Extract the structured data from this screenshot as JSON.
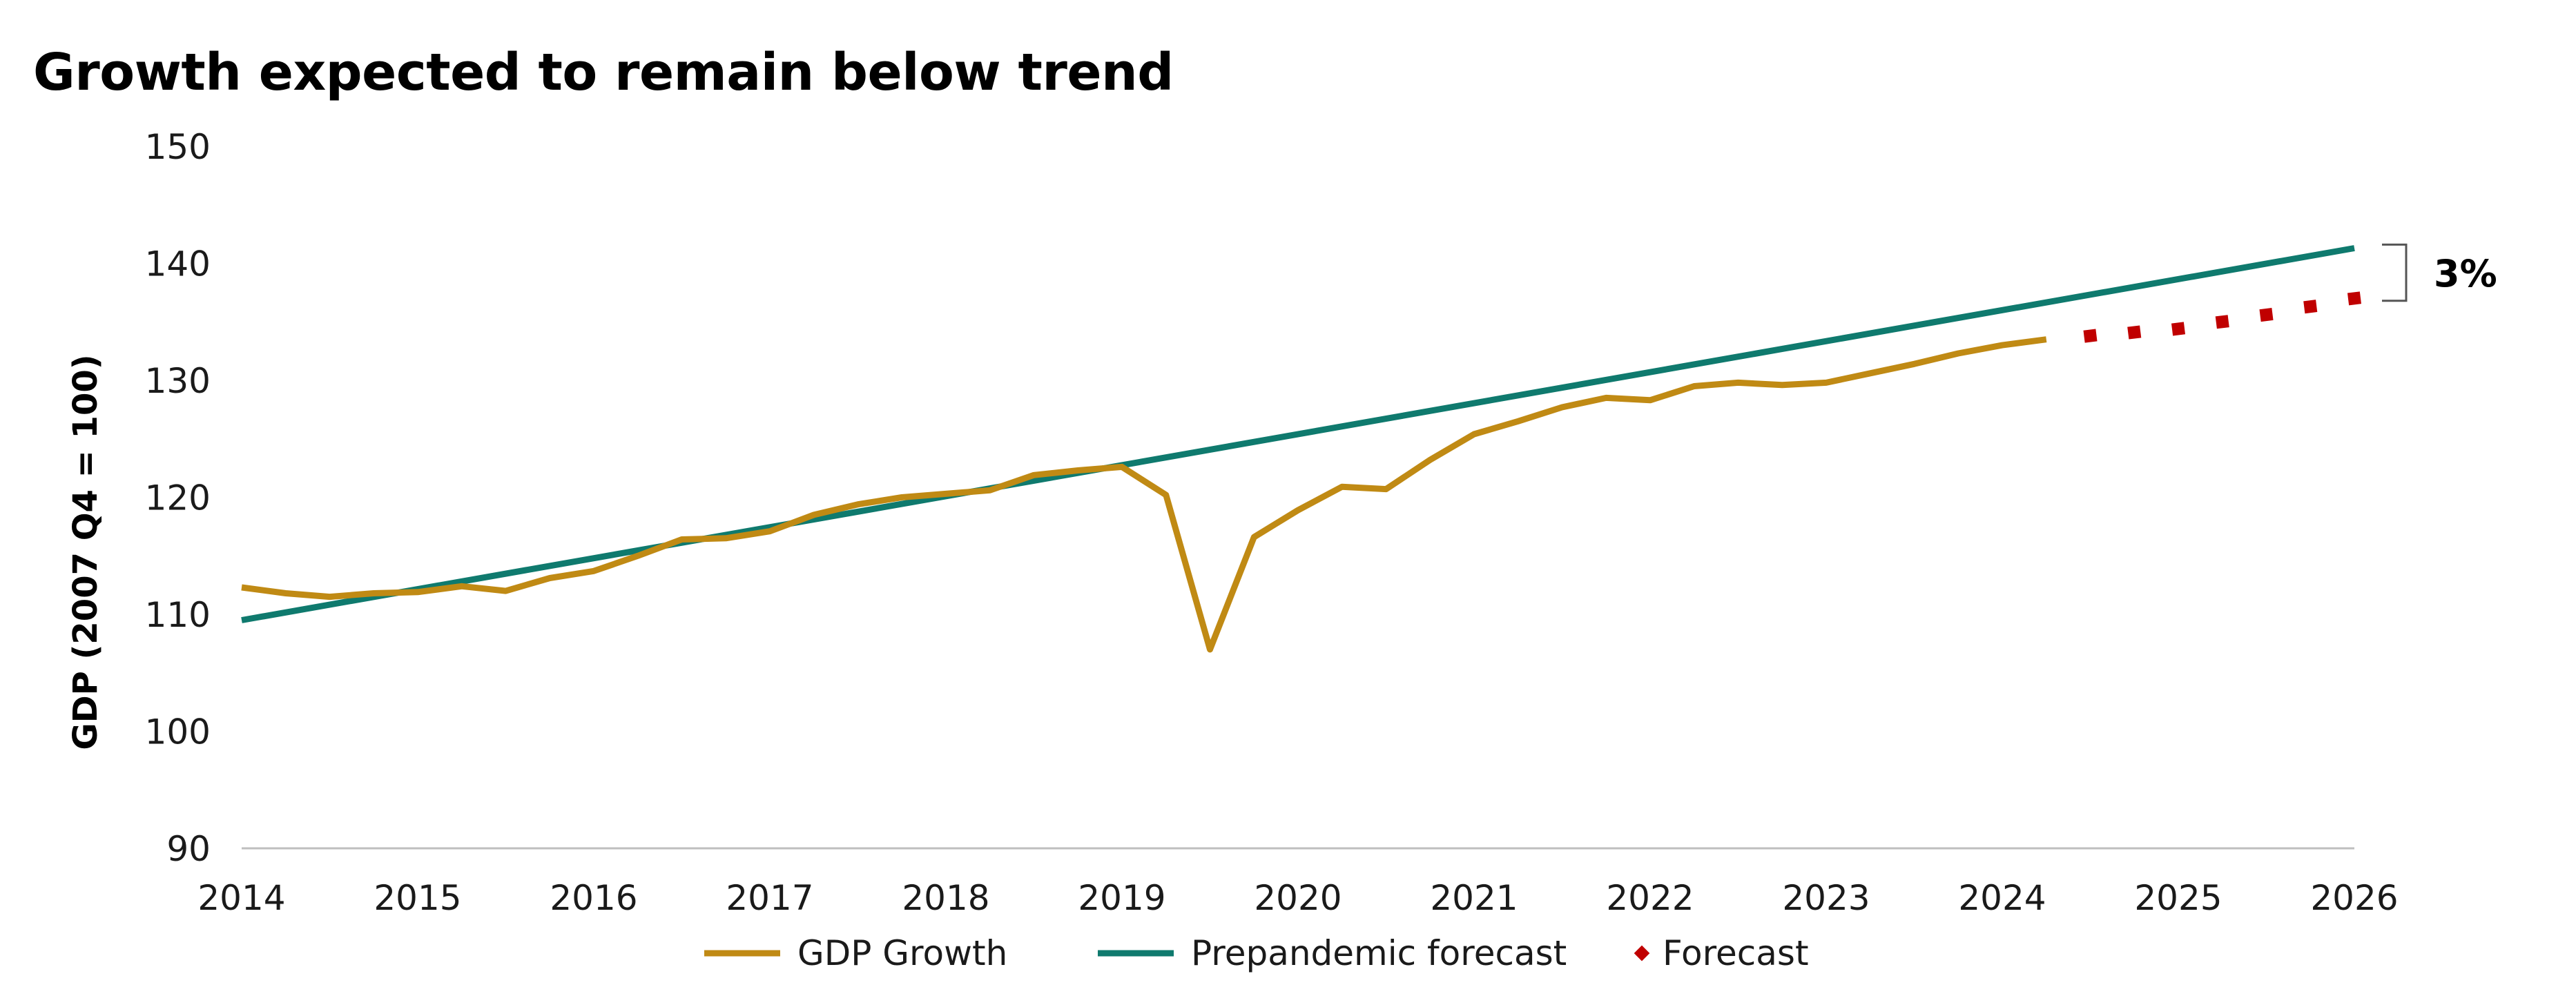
{
  "chart_data": {
    "type": "line",
    "title": "Growth expected to remain below trend",
    "ylabel": "GDP (2007 Q4 = 100)",
    "xlabel": "",
    "xlim": [
      2014,
      2026
    ],
    "ylim": [
      90,
      150
    ],
    "x_ticks": [
      "2014",
      "2015",
      "2016",
      "2017",
      "2018",
      "2019",
      "2020",
      "2021",
      "2022",
      "2023",
      "2024",
      "2025",
      "2026"
    ],
    "y_ticks": [
      "90",
      "100",
      "110",
      "120",
      "130",
      "140",
      "150"
    ],
    "grid": false,
    "legend_position": "bottom",
    "series": [
      {
        "name": "GDP Growth",
        "style": "solid",
        "color": "#C08A14",
        "points": [
          [
            2014.0,
            112.3
          ],
          [
            2014.25,
            111.8
          ],
          [
            2014.5,
            111.5
          ],
          [
            2014.75,
            111.8
          ],
          [
            2015.0,
            111.9
          ],
          [
            2015.25,
            112.4
          ],
          [
            2015.5,
            112.0
          ],
          [
            2015.75,
            113.1
          ],
          [
            2016.0,
            113.7
          ],
          [
            2016.25,
            115.0
          ],
          [
            2016.5,
            116.4
          ],
          [
            2016.75,
            116.5
          ],
          [
            2017.0,
            117.1
          ],
          [
            2017.25,
            118.5
          ],
          [
            2017.5,
            119.4
          ],
          [
            2017.75,
            120.0
          ],
          [
            2018.0,
            120.3
          ],
          [
            2018.25,
            120.6
          ],
          [
            2018.5,
            121.9
          ],
          [
            2018.75,
            122.3
          ],
          [
            2019.0,
            122.6
          ],
          [
            2019.25,
            120.2
          ],
          [
            2019.5,
            107.0
          ],
          [
            2019.75,
            116.6
          ],
          [
            2020.0,
            118.9
          ],
          [
            2020.25,
            120.9
          ],
          [
            2020.5,
            120.7
          ],
          [
            2020.75,
            123.2
          ],
          [
            2021.0,
            125.4
          ],
          [
            2021.25,
            126.5
          ],
          [
            2021.5,
            127.7
          ],
          [
            2021.75,
            128.5
          ],
          [
            2022.0,
            128.3
          ],
          [
            2022.25,
            129.5
          ],
          [
            2022.5,
            129.8
          ],
          [
            2022.75,
            129.6
          ],
          [
            2023.0,
            129.8
          ],
          [
            2023.25,
            130.6
          ],
          [
            2023.5,
            131.4
          ],
          [
            2023.75,
            132.3
          ],
          [
            2024.0,
            133.0
          ],
          [
            2024.25,
            133.5
          ]
        ]
      },
      {
        "name": "Prepandemic forecast",
        "style": "solid",
        "color": "#0F7A6E",
        "points": [
          [
            2014.0,
            109.5
          ],
          [
            2026.0,
            141.3
          ]
        ]
      },
      {
        "name": "Forecast",
        "style": "dotted",
        "color": "#C00000",
        "points": [
          [
            2024.5,
            133.8
          ],
          [
            2024.75,
            134.1
          ],
          [
            2025.0,
            134.4
          ],
          [
            2025.25,
            135.0
          ],
          [
            2025.5,
            135.6
          ],
          [
            2025.75,
            136.3
          ],
          [
            2026.0,
            137.0
          ]
        ]
      }
    ],
    "annotations": [
      {
        "text": "3%",
        "at_x": 2026.0,
        "y_from": 136.8,
        "y_to": 141.6
      }
    ]
  }
}
